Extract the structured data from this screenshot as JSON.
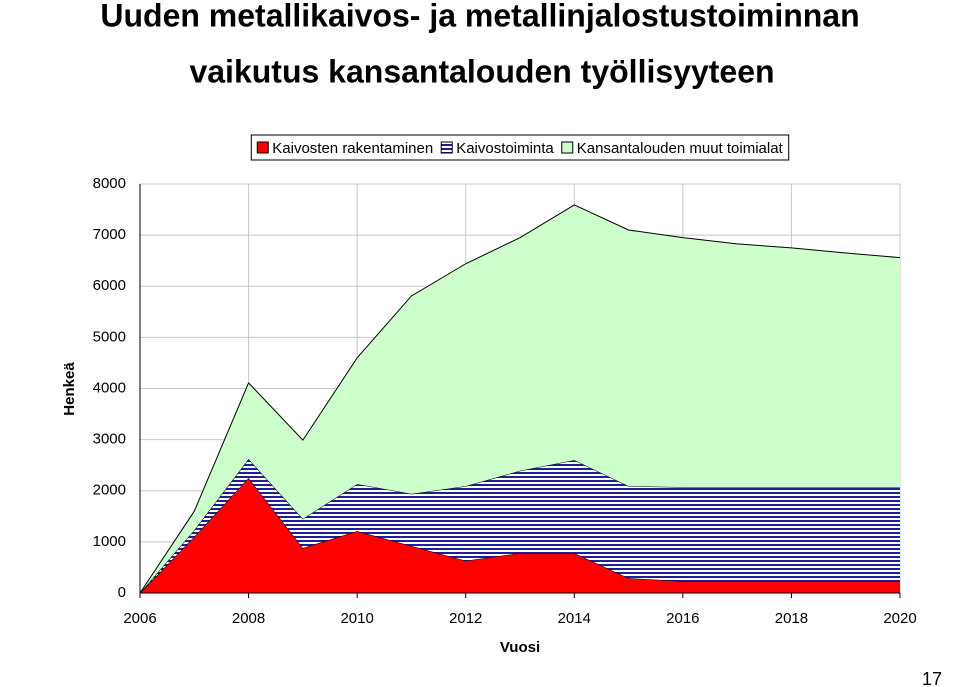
{
  "chart_data": {
    "type": "stacked-area",
    "title": [
      "Uuden metallikaivos- ja metallinjalostustoiminnan",
      "vaikutus kansantalouden työllisyyteen"
    ],
    "x_label": "Vuosi",
    "y_label": "Henkeä",
    "x": [
      2006,
      2007,
      2008,
      2009,
      2010,
      2011,
      2012,
      2013,
      2014,
      2015,
      2016,
      2017,
      2018,
      2019,
      2020
    ],
    "series": [
      {
        "name": "Kaivosten rakentaminen",
        "color": "#ff0000",
        "pattern": "solid",
        "values": [
          0,
          1100,
          2250,
          880,
          1210,
          920,
          630,
          780,
          780,
          290,
          230,
          230,
          230,
          230,
          230
        ]
      },
      {
        "name": "Kaivostoiminta",
        "color": "#1f1f99",
        "pattern": "horizontal-stripes",
        "values": [
          0,
          130,
          370,
          570,
          920,
          1020,
          1460,
          1610,
          1820,
          1800,
          1840,
          1840,
          1840,
          1840,
          1840
        ]
      },
      {
        "name": "Kansantalouden muut toimialat",
        "color": "#ccffcc",
        "pattern": "solid",
        "values": [
          0,
          370,
          1490,
          1540,
          2470,
          3870,
          4350,
          4560,
          4990,
          5010,
          4880,
          4760,
          4680,
          4580,
          4490
        ]
      }
    ],
    "xlim": [
      2006,
      2020
    ],
    "xticks": [
      2006,
      2008,
      2010,
      2012,
      2014,
      2016,
      2018,
      2020
    ],
    "ylim": [
      0,
      8000
    ],
    "yticks": [
      0,
      1000,
      2000,
      3000,
      4000,
      5000,
      6000,
      7000,
      8000
    ],
    "grid": true,
    "legend": "top"
  },
  "slide_number": "17"
}
